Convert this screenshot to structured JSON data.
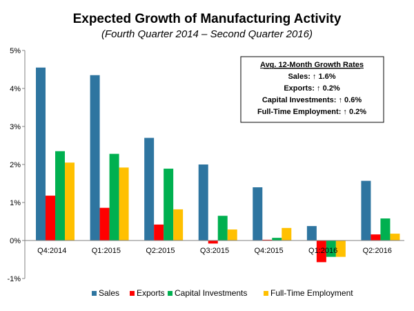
{
  "chart_data": {
    "type": "bar",
    "title": "Expected Growth of Manufacturing  Activity",
    "subtitle": "(Fourth Quarter 2014 – Second Quarter 2016)",
    "categories": [
      "Q4:2014",
      "Q1:2015",
      "Q2:2015",
      "Q3:2015",
      "Q4:2015",
      "Q1:2016",
      "Q2:2016"
    ],
    "series": [
      {
        "name": "Sales",
        "color": "#2E75A0",
        "values": [
          4.55,
          4.35,
          2.7,
          2.0,
          1.4,
          0.38,
          1.57
        ]
      },
      {
        "name": "Exports",
        "color": "#FF0000",
        "values": [
          1.18,
          0.86,
          0.42,
          -0.08,
          0.02,
          -0.57,
          0.16
        ]
      },
      {
        "name": "Capital Investments",
        "color": "#00B050",
        "values": [
          2.35,
          2.28,
          1.89,
          0.65,
          0.07,
          -0.43,
          0.58
        ]
      },
      {
        "name": "Full-Time Employment",
        "color": "#FFC000",
        "values": [
          2.05,
          1.92,
          0.82,
          0.29,
          0.33,
          -0.43,
          0.18
        ]
      }
    ],
    "ylim": [
      -1,
      5
    ],
    "yticks": [
      "-1%",
      "0%",
      "1%",
      "2%",
      "3%",
      "4%",
      "5%"
    ],
    "ytick_values": [
      -1,
      0,
      1,
      2,
      3,
      4,
      5
    ],
    "xlabel": "",
    "ylabel": "",
    "legend_position": "bottom",
    "annotation": {
      "heading": "Avg. 12-Month Growth Rates",
      "lines": [
        "Sales: ↑ 1.6%",
        "Exports: ↑ 0.2%",
        "Capital Investments: ↑ 0.6%",
        "Full-Time Employment: ↑ 0.2%"
      ]
    }
  }
}
